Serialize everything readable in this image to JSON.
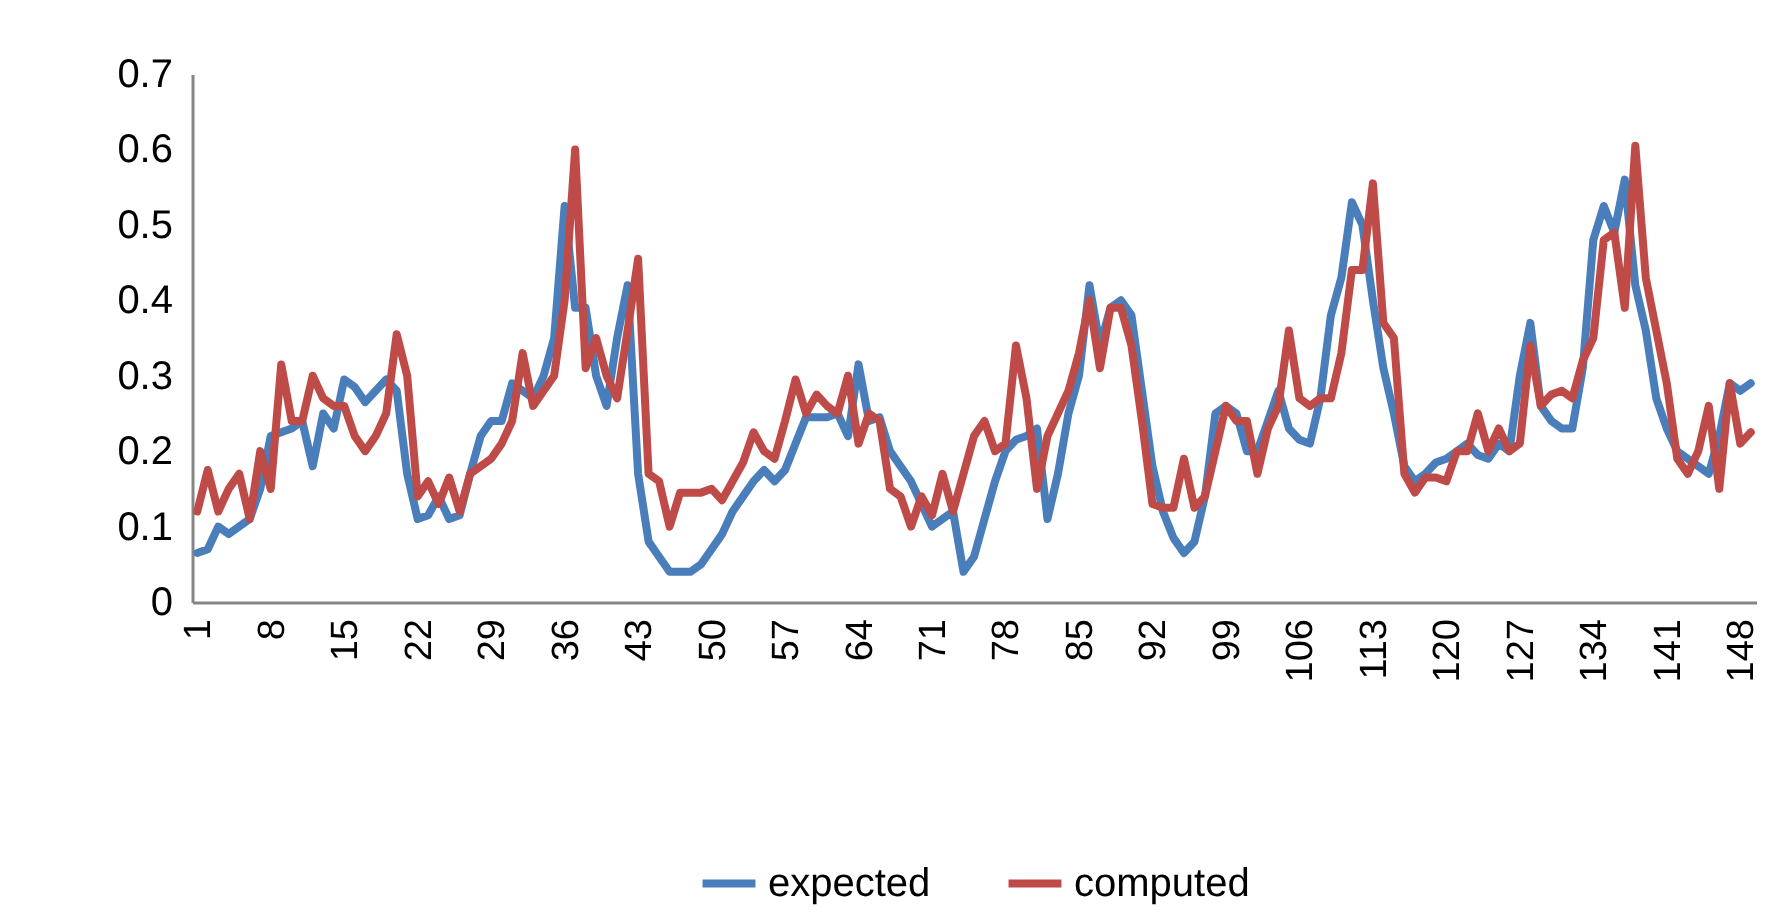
{
  "chart_data": {
    "type": "line",
    "x": [
      1,
      2,
      3,
      4,
      5,
      6,
      7,
      8,
      9,
      10,
      11,
      12,
      13,
      14,
      15,
      16,
      17,
      18,
      19,
      20,
      21,
      22,
      23,
      24,
      25,
      26,
      27,
      28,
      29,
      30,
      31,
      32,
      33,
      34,
      35,
      36,
      37,
      38,
      39,
      40,
      41,
      42,
      43,
      44,
      45,
      46,
      47,
      48,
      49,
      50,
      51,
      52,
      53,
      54,
      55,
      56,
      57,
      58,
      59,
      60,
      61,
      62,
      63,
      64,
      65,
      66,
      67,
      68,
      69,
      70,
      71,
      72,
      73,
      74,
      75,
      76,
      77,
      78,
      79,
      80,
      81,
      82,
      83,
      84,
      85,
      86,
      87,
      88,
      89,
      90,
      91,
      92,
      93,
      94,
      95,
      96,
      97,
      98,
      99,
      100,
      101,
      102,
      103,
      104,
      105,
      106,
      107,
      108,
      109,
      110,
      111,
      112,
      113,
      114,
      115,
      116,
      117,
      118,
      119,
      120,
      121,
      122,
      123,
      124,
      125,
      126,
      127,
      128,
      129,
      130,
      131,
      132,
      133,
      134,
      135,
      136,
      137,
      138,
      139,
      140,
      141,
      142,
      143,
      144,
      145,
      146,
      147,
      148,
      149
    ],
    "series": [
      {
        "name": "expected",
        "color": "#4a7ebb",
        "values": [
          0.065,
          0.07,
          0.1,
          0.09,
          0.1,
          0.11,
          0.15,
          0.22,
          0.225,
          0.23,
          0.24,
          0.18,
          0.25,
          0.23,
          0.295,
          0.285,
          0.265,
          0.28,
          0.295,
          0.28,
          0.17,
          0.11,
          0.115,
          0.14,
          0.11,
          0.115,
          0.17,
          0.22,
          0.24,
          0.24,
          0.29,
          0.28,
          0.27,
          0.3,
          0.35,
          0.525,
          0.39,
          0.39,
          0.3,
          0.26,
          0.35,
          0.42,
          0.17,
          0.08,
          0.06,
          0.04,
          0.04,
          0.04,
          0.05,
          0.07,
          0.09,
          0.12,
          0.14,
          0.16,
          0.175,
          0.16,
          0.175,
          0.21,
          0.245,
          0.245,
          0.245,
          0.25,
          0.22,
          0.315,
          0.24,
          0.245,
          0.2,
          0.18,
          0.16,
          0.13,
          0.1,
          0.11,
          0.12,
          0.04,
          0.06,
          0.11,
          0.16,
          0.2,
          0.215,
          0.22,
          0.23,
          0.11,
          0.17,
          0.25,
          0.3,
          0.42,
          0.34,
          0.39,
          0.4,
          0.38,
          0.28,
          0.18,
          0.12,
          0.085,
          0.065,
          0.08,
          0.14,
          0.25,
          0.26,
          0.25,
          0.2,
          0.2,
          0.24,
          0.28,
          0.23,
          0.215,
          0.21,
          0.27,
          0.38,
          0.43,
          0.53,
          0.5,
          0.4,
          0.31,
          0.25,
          0.18,
          0.16,
          0.17,
          0.185,
          0.19,
          0.2,
          0.21,
          0.195,
          0.19,
          0.21,
          0.2,
          0.3,
          0.37,
          0.26,
          0.24,
          0.23,
          0.23,
          0.31,
          0.48,
          0.525,
          0.49,
          0.56,
          0.42,
          0.36,
          0.27,
          0.23,
          0.2,
          0.19,
          0.18,
          0.17,
          0.22,
          0.29,
          0.28,
          0.29
        ]
      },
      {
        "name": "computed",
        "color": "#be4b48",
        "values": [
          0.12,
          0.175,
          0.12,
          0.15,
          0.17,
          0.11,
          0.2,
          0.15,
          0.315,
          0.24,
          0.24,
          0.3,
          0.27,
          0.26,
          0.26,
          0.22,
          0.2,
          0.22,
          0.25,
          0.355,
          0.3,
          0.14,
          0.16,
          0.13,
          0.165,
          0.12,
          0.17,
          0.18,
          0.19,
          0.21,
          0.24,
          0.33,
          0.26,
          0.28,
          0.3,
          0.4,
          0.6,
          0.31,
          0.35,
          0.3,
          0.27,
          0.36,
          0.455,
          0.17,
          0.16,
          0.1,
          0.145,
          0.145,
          0.145,
          0.15,
          0.135,
          0.16,
          0.185,
          0.225,
          0.2,
          0.19,
          0.24,
          0.295,
          0.25,
          0.275,
          0.26,
          0.25,
          0.3,
          0.21,
          0.25,
          0.24,
          0.15,
          0.14,
          0.1,
          0.14,
          0.115,
          0.17,
          0.12,
          0.17,
          0.22,
          0.24,
          0.2,
          0.21,
          0.34,
          0.27,
          0.15,
          0.22,
          0.25,
          0.28,
          0.33,
          0.4,
          0.31,
          0.39,
          0.39,
          0.34,
          0.24,
          0.13,
          0.125,
          0.125,
          0.19,
          0.125,
          0.14,
          0.2,
          0.26,
          0.24,
          0.24,
          0.17,
          0.23,
          0.26,
          0.36,
          0.27,
          0.26,
          0.27,
          0.27,
          0.33,
          0.44,
          0.44,
          0.555,
          0.37,
          0.35,
          0.17,
          0.145,
          0.165,
          0.165,
          0.16,
          0.2,
          0.2,
          0.25,
          0.2,
          0.23,
          0.2,
          0.21,
          0.34,
          0.26,
          0.275,
          0.28,
          0.27,
          0.32,
          0.35,
          0.48,
          0.49,
          0.39,
          0.605,
          0.43,
          0.36,
          0.29,
          0.19,
          0.17,
          0.2,
          0.26,
          0.15,
          0.29,
          0.21,
          0.225
        ]
      }
    ],
    "xlim": [
      0.5,
      149.5
    ],
    "xticks": [
      1,
      8,
      15,
      22,
      29,
      36,
      43,
      50,
      57,
      64,
      71,
      78,
      85,
      92,
      99,
      106,
      113,
      120,
      127,
      134,
      141,
      148
    ],
    "ylim": [
      0,
      0.7
    ],
    "yticks": [
      0,
      0.1,
      0.2,
      0.3,
      0.4,
      0.5,
      0.6,
      0.7
    ],
    "grid": false,
    "legend": "bottom",
    "line_style": "solid",
    "marker": "none"
  }
}
